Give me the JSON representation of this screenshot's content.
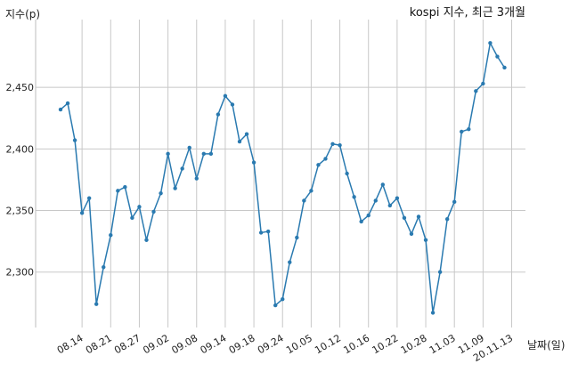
{
  "chart_data": {
    "type": "line",
    "title": "kospi 지수, 최근 3개월",
    "ylabel": "지수(p)",
    "xlabel": "날짜(일)",
    "ylim": [
      2255,
      2505
    ],
    "yticks": [
      2300,
      2350,
      2400,
      2450
    ],
    "ytick_labels": [
      "2,300",
      "2,350",
      "2,400",
      "2,450"
    ],
    "grid": true,
    "xticks": [
      {
        "label": "08.14",
        "index": 3
      },
      {
        "label": "08.21",
        "index": 7
      },
      {
        "label": "08.27",
        "index": 11
      },
      {
        "label": "09.02",
        "index": 15
      },
      {
        "label": "09.08",
        "index": 19
      },
      {
        "label": "09.14",
        "index": 23
      },
      {
        "label": "09.18",
        "index": 27
      },
      {
        "label": "09.24",
        "index": 31
      },
      {
        "label": "10.05",
        "index": 35
      },
      {
        "label": "10.12",
        "index": 39
      },
      {
        "label": "10.16",
        "index": 43
      },
      {
        "label": "10.22",
        "index": 47
      },
      {
        "label": "10.28",
        "index": 51
      },
      {
        "label": "11.03",
        "index": 55
      },
      {
        "label": "11.09",
        "index": 59
      },
      {
        "label": "20.11.13",
        "index": 63
      }
    ],
    "series": [
      {
        "color": "#2a7ab0",
        "values": [
          2432,
          2437,
          2407,
          2348,
          2360,
          2274,
          2304,
          2330,
          2366,
          2369,
          2344,
          2353,
          2326,
          2349,
          2364,
          2396,
          2368,
          2384,
          2401,
          2376,
          2396,
          2396,
          2428,
          2443,
          2436,
          2406,
          2412,
          2389,
          2332,
          2333,
          2273,
          2278,
          2308,
          2328,
          2358,
          2366,
          2387,
          2392,
          2404,
          2403,
          2380,
          2361,
          2341,
          2346,
          2358,
          2371,
          2354,
          2360,
          2344,
          2331,
          2345,
          2326,
          2267,
          2300,
          2343,
          2357,
          2414,
          2416,
          2447,
          2453,
          2486,
          2475,
          2466
        ]
      }
    ]
  }
}
